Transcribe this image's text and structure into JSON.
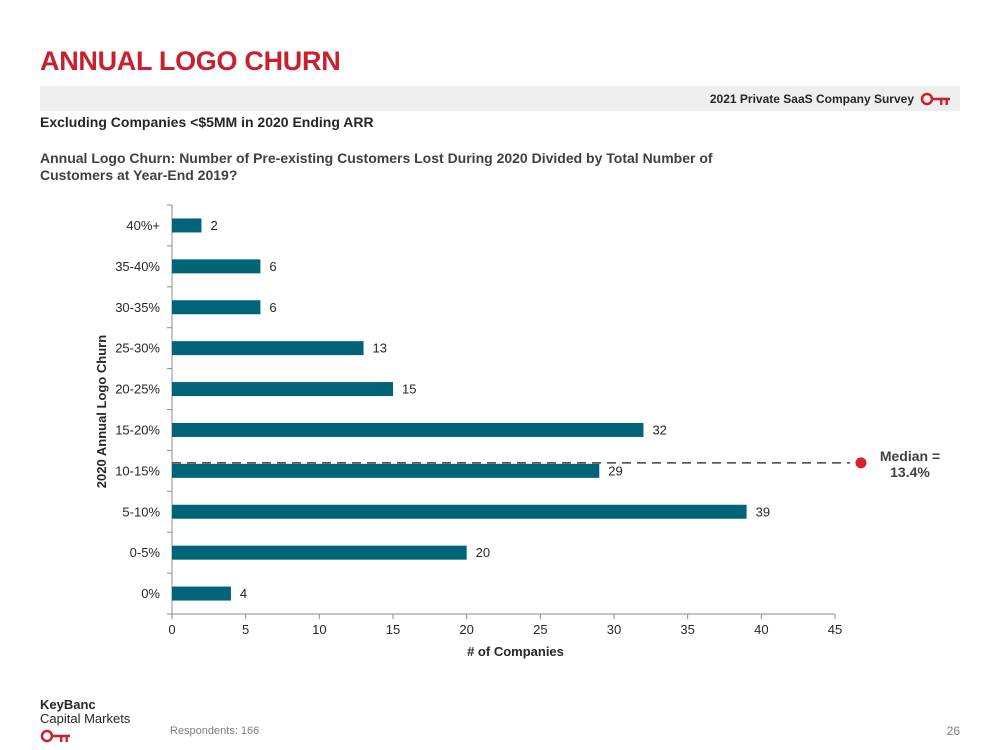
{
  "header": {
    "title": "ANNUAL LOGO CHURN",
    "survey_label": "2021 Private SaaS Company Survey",
    "subtitle": "Excluding Companies <$5MM in 2020 Ending ARR",
    "question": "Annual Logo Churn: Number of Pre-existing Customers Lost During 2020 Divided by Total Number of Customers at Year-End 2019?"
  },
  "colors": {
    "title_red": "#c8202f",
    "bar": "#006478",
    "median_marker": "#d6232d"
  },
  "chart_data": {
    "type": "bar",
    "orientation": "horizontal",
    "categories": [
      "40%+",
      "35-40%",
      "30-35%",
      "25-30%",
      "20-25%",
      "15-20%",
      "10-15%",
      "5-10%",
      "0-5%",
      "0%"
    ],
    "values": [
      2,
      6,
      6,
      13,
      15,
      32,
      29,
      39,
      20,
      4
    ],
    "xlabel": "# of Companies",
    "ylabel": "2020 Annual Logo Churn",
    "xlim": [
      0,
      45
    ],
    "xticks": [
      0,
      5,
      10,
      15,
      20,
      25,
      30,
      35,
      40,
      45
    ],
    "grid": false,
    "median": {
      "category": "10-15%",
      "line1": "Median =",
      "line2": "13.4%"
    }
  },
  "footer": {
    "brand_name": "KeyBanc",
    "brand_sub": "Capital Markets",
    "respondents": "Respondents: 166",
    "page_number": "26"
  }
}
